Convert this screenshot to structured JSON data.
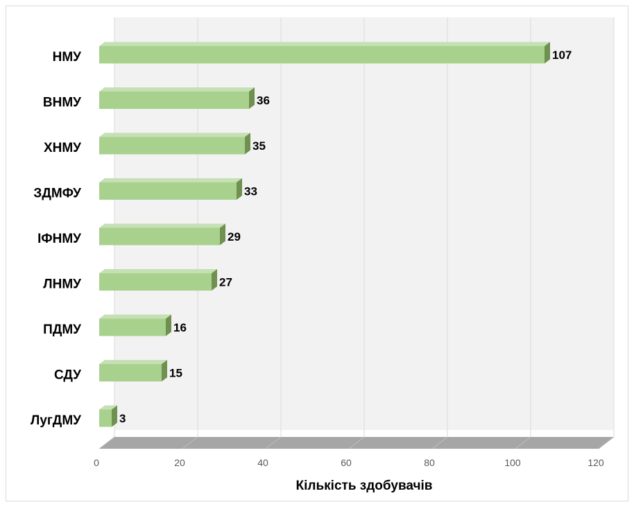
{
  "chart_data": {
    "type": "bar",
    "orientation": "horizontal",
    "style": "3d",
    "categories": [
      "НМУ",
      "ВНМУ",
      "ХНМУ",
      "ЗДМФУ",
      "ІФНМУ",
      "ЛНМУ",
      "ПДМУ",
      "СДУ",
      "ЛугДМУ"
    ],
    "values": [
      107,
      36,
      35,
      33,
      29,
      27,
      16,
      15,
      3
    ],
    "title": "",
    "xlabel": "Кількість здобувачів",
    "ylabel": "",
    "xlim": [
      0,
      120
    ],
    "x_ticks": [
      0,
      20,
      40,
      60,
      80,
      100,
      120
    ],
    "x_tick_labels": [
      "0",
      "20",
      "40",
      "60",
      "80",
      "100",
      "120"
    ],
    "grid": true,
    "legend": "none",
    "data_labels": true,
    "colors": {
      "bar_front": "#a9d18e",
      "bar_top": "#c5e0b4",
      "bar_side": "#70904f",
      "back_wall": "#f2f2f2",
      "floor": "#a6a6a6",
      "gridline": "#d9d9d9"
    }
  }
}
